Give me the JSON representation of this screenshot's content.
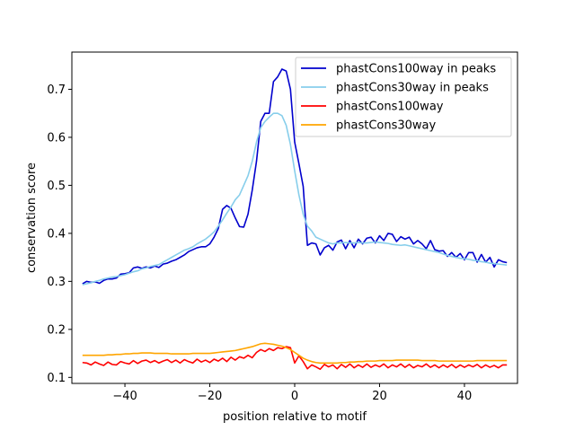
{
  "chart_data": {
    "type": "line",
    "xlabel": "position relative to motif",
    "ylabel": "conservation score",
    "xlim": [
      -52.5,
      52.5
    ],
    "ylim": [
      0.0875,
      0.7775
    ],
    "xticks": [
      -40,
      -20,
      0,
      20,
      40
    ],
    "yticks": [
      0.1,
      0.2,
      0.3,
      0.4,
      0.5,
      0.6,
      0.7
    ],
    "grid": false,
    "legend_position": "top-right",
    "series": [
      {
        "name": "phastCons100way in peaks",
        "color": "#0000cd",
        "x": [
          -50,
          -49,
          -48,
          -47,
          -46,
          -45,
          -44,
          -43,
          -42,
          -41,
          -40,
          -39,
          -38,
          -37,
          -36,
          -35,
          -34,
          -33,
          -32,
          -31,
          -30,
          -29,
          -28,
          -27,
          -26,
          -25,
          -24,
          -23,
          -22,
          -21,
          -20,
          -19,
          -18,
          -17,
          -16,
          -15,
          -14,
          -13,
          -12,
          -11,
          -10,
          -9,
          -8,
          -7,
          -6,
          -5,
          -4,
          -3,
          -2,
          -1,
          0,
          1,
          2,
          3,
          4,
          5,
          6,
          7,
          8,
          9,
          10,
          11,
          12,
          13,
          14,
          15,
          16,
          17,
          18,
          19,
          20,
          21,
          22,
          23,
          24,
          25,
          26,
          27,
          28,
          29,
          30,
          31,
          32,
          33,
          34,
          35,
          36,
          37,
          38,
          39,
          40,
          41,
          42,
          43,
          44,
          45,
          46,
          47,
          48,
          49,
          50
        ],
        "values": [
          0.295,
          0.3,
          0.298,
          0.299,
          0.296,
          0.302,
          0.305,
          0.305,
          0.307,
          0.315,
          0.316,
          0.318,
          0.328,
          0.33,
          0.327,
          0.33,
          0.328,
          0.332,
          0.329,
          0.336,
          0.338,
          0.342,
          0.345,
          0.35,
          0.355,
          0.362,
          0.366,
          0.37,
          0.372,
          0.372,
          0.378,
          0.392,
          0.41,
          0.45,
          0.458,
          0.452,
          0.432,
          0.414,
          0.413,
          0.44,
          0.49,
          0.55,
          0.633,
          0.65,
          0.65,
          0.716,
          0.726,
          0.742,
          0.738,
          0.7,
          0.59,
          0.545,
          0.498,
          0.375,
          0.38,
          0.378,
          0.355,
          0.37,
          0.375,
          0.365,
          0.382,
          0.386,
          0.368,
          0.385,
          0.37,
          0.388,
          0.378,
          0.39,
          0.392,
          0.38,
          0.395,
          0.385,
          0.4,
          0.398,
          0.383,
          0.393,
          0.388,
          0.392,
          0.378,
          0.385,
          0.378,
          0.368,
          0.385,
          0.366,
          0.363,
          0.364,
          0.352,
          0.36,
          0.35,
          0.358,
          0.345,
          0.36,
          0.36,
          0.34,
          0.356,
          0.34,
          0.35,
          0.33,
          0.345,
          0.341,
          0.339
        ]
      },
      {
        "name": "phastCons30way in peaks",
        "color": "#87ceeb",
        "x": [
          -50,
          -49,
          -48,
          -47,
          -46,
          -45,
          -44,
          -43,
          -42,
          -41,
          -40,
          -39,
          -38,
          -37,
          -36,
          -35,
          -34,
          -33,
          -32,
          -31,
          -30,
          -29,
          -28,
          -27,
          -26,
          -25,
          -24,
          -23,
          -22,
          -21,
          -20,
          -19,
          -18,
          -17,
          -16,
          -15,
          -14,
          -13,
          -12,
          -11,
          -10,
          -9,
          -8,
          -7,
          -6,
          -5,
          -4,
          -3,
          -2,
          -1,
          0,
          1,
          2,
          3,
          4,
          5,
          6,
          7,
          8,
          9,
          10,
          11,
          12,
          13,
          14,
          15,
          16,
          17,
          18,
          19,
          20,
          21,
          22,
          23,
          24,
          25,
          26,
          27,
          28,
          29,
          30,
          31,
          32,
          33,
          34,
          35,
          36,
          37,
          38,
          39,
          40,
          41,
          42,
          43,
          44,
          45,
          46,
          47,
          48,
          49,
          50
        ],
        "values": [
          0.293,
          0.295,
          0.297,
          0.3,
          0.302,
          0.305,
          0.307,
          0.309,
          0.31,
          0.312,
          0.314,
          0.317,
          0.32,
          0.322,
          0.326,
          0.328,
          0.331,
          0.333,
          0.335,
          0.34,
          0.345,
          0.35,
          0.355,
          0.36,
          0.365,
          0.368,
          0.372,
          0.378,
          0.383,
          0.388,
          0.395,
          0.403,
          0.415,
          0.428,
          0.442,
          0.455,
          0.47,
          0.48,
          0.5,
          0.52,
          0.55,
          0.59,
          0.62,
          0.633,
          0.642,
          0.65,
          0.65,
          0.645,
          0.625,
          0.585,
          0.53,
          0.48,
          0.44,
          0.415,
          0.405,
          0.392,
          0.388,
          0.384,
          0.38,
          0.378,
          0.38,
          0.38,
          0.381,
          0.38,
          0.38,
          0.381,
          0.38,
          0.38,
          0.381,
          0.382,
          0.381,
          0.38,
          0.379,
          0.377,
          0.376,
          0.375,
          0.376,
          0.374,
          0.372,
          0.37,
          0.368,
          0.366,
          0.364,
          0.362,
          0.36,
          0.357,
          0.354,
          0.352,
          0.35,
          0.348,
          0.347,
          0.346,
          0.344,
          0.343,
          0.341,
          0.34,
          0.338,
          0.337,
          0.336,
          0.335,
          0.334
        ]
      },
      {
        "name": "phastCons100way",
        "color": "#ff0000",
        "x": [
          -50,
          -49,
          -48,
          -47,
          -46,
          -45,
          -44,
          -43,
          -42,
          -41,
          -40,
          -39,
          -38,
          -37,
          -36,
          -35,
          -34,
          -33,
          -32,
          -31,
          -30,
          -29,
          -28,
          -27,
          -26,
          -25,
          -24,
          -23,
          -22,
          -21,
          -20,
          -19,
          -18,
          -17,
          -16,
          -15,
          -14,
          -13,
          -12,
          -11,
          -10,
          -9,
          -8,
          -7,
          -6,
          -5,
          -4,
          -3,
          -2,
          -1,
          0,
          1,
          2,
          3,
          4,
          5,
          6,
          7,
          8,
          9,
          10,
          11,
          12,
          13,
          14,
          15,
          16,
          17,
          18,
          19,
          20,
          21,
          22,
          23,
          24,
          25,
          26,
          27,
          28,
          29,
          30,
          31,
          32,
          33,
          34,
          35,
          36,
          37,
          38,
          39,
          40,
          41,
          42,
          43,
          44,
          45,
          46,
          47,
          48,
          49,
          50
        ],
        "values": [
          0.131,
          0.13,
          0.126,
          0.132,
          0.128,
          0.125,
          0.132,
          0.127,
          0.126,
          0.133,
          0.13,
          0.128,
          0.135,
          0.129,
          0.134,
          0.136,
          0.131,
          0.135,
          0.13,
          0.134,
          0.137,
          0.131,
          0.136,
          0.13,
          0.137,
          0.133,
          0.13,
          0.138,
          0.132,
          0.136,
          0.131,
          0.138,
          0.134,
          0.14,
          0.133,
          0.142,
          0.136,
          0.143,
          0.14,
          0.146,
          0.141,
          0.152,
          0.158,
          0.154,
          0.16,
          0.156,
          0.162,
          0.16,
          0.164,
          0.162,
          0.13,
          0.145,
          0.133,
          0.118,
          0.126,
          0.122,
          0.117,
          0.127,
          0.122,
          0.126,
          0.118,
          0.127,
          0.121,
          0.128,
          0.12,
          0.126,
          0.121,
          0.128,
          0.121,
          0.126,
          0.122,
          0.128,
          0.12,
          0.126,
          0.122,
          0.128,
          0.121,
          0.127,
          0.12,
          0.125,
          0.122,
          0.128,
          0.121,
          0.126,
          0.12,
          0.126,
          0.121,
          0.127,
          0.12,
          0.126,
          0.121,
          0.126,
          0.122,
          0.127,
          0.12,
          0.126,
          0.121,
          0.125,
          0.12,
          0.126,
          0.126
        ]
      },
      {
        "name": "phastCons30way",
        "color": "#ffa500",
        "x": [
          -50,
          -49,
          -48,
          -47,
          -46,
          -45,
          -44,
          -43,
          -42,
          -41,
          -40,
          -39,
          -38,
          -37,
          -36,
          -35,
          -34,
          -33,
          -32,
          -31,
          -30,
          -29,
          -28,
          -27,
          -26,
          -25,
          -24,
          -23,
          -22,
          -21,
          -20,
          -19,
          -18,
          -17,
          -16,
          -15,
          -14,
          -13,
          -12,
          -11,
          -10,
          -9,
          -8,
          -7,
          -6,
          -5,
          -4,
          -3,
          -2,
          -1,
          0,
          1,
          2,
          3,
          4,
          5,
          6,
          7,
          8,
          9,
          10,
          11,
          12,
          13,
          14,
          15,
          16,
          17,
          18,
          19,
          20,
          21,
          22,
          23,
          24,
          25,
          26,
          27,
          28,
          29,
          30,
          31,
          32,
          33,
          34,
          35,
          36,
          37,
          38,
          39,
          40,
          41,
          42,
          43,
          44,
          45,
          46,
          47,
          48,
          49,
          50
        ],
        "values": [
          0.146,
          0.146,
          0.146,
          0.146,
          0.146,
          0.146,
          0.147,
          0.147,
          0.148,
          0.148,
          0.149,
          0.149,
          0.15,
          0.15,
          0.151,
          0.151,
          0.151,
          0.15,
          0.15,
          0.15,
          0.15,
          0.149,
          0.149,
          0.149,
          0.149,
          0.149,
          0.15,
          0.15,
          0.15,
          0.15,
          0.15,
          0.151,
          0.152,
          0.153,
          0.154,
          0.155,
          0.156,
          0.158,
          0.16,
          0.162,
          0.164,
          0.167,
          0.17,
          0.171,
          0.17,
          0.169,
          0.167,
          0.165,
          0.162,
          0.158,
          0.152,
          0.146,
          0.14,
          0.136,
          0.133,
          0.131,
          0.13,
          0.13,
          0.13,
          0.13,
          0.13,
          0.131,
          0.131,
          0.132,
          0.132,
          0.133,
          0.133,
          0.134,
          0.134,
          0.134,
          0.135,
          0.135,
          0.135,
          0.135,
          0.136,
          0.136,
          0.136,
          0.136,
          0.136,
          0.136,
          0.135,
          0.135,
          0.135,
          0.135,
          0.134,
          0.134,
          0.134,
          0.134,
          0.134,
          0.134,
          0.134,
          0.134,
          0.134,
          0.135,
          0.135,
          0.135,
          0.135,
          0.135,
          0.135,
          0.135,
          0.135
        ]
      }
    ]
  }
}
